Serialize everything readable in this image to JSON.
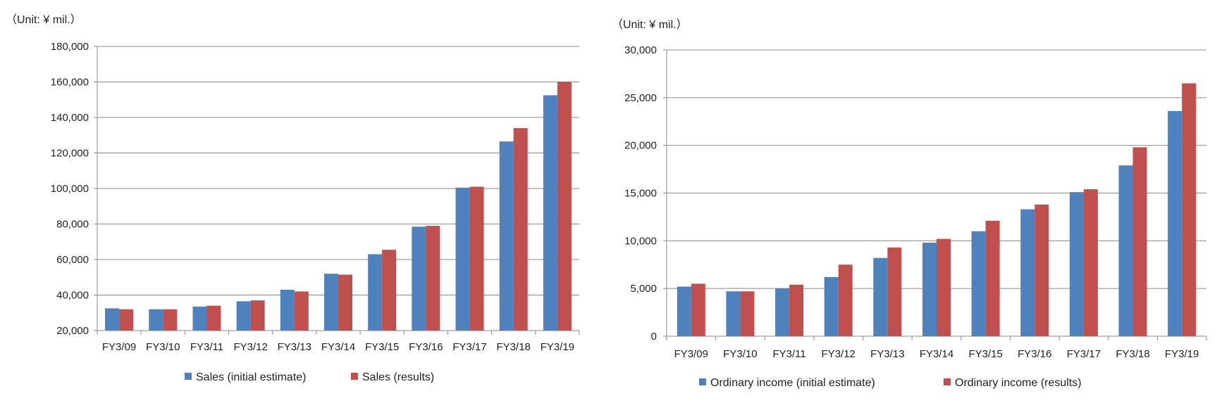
{
  "colors": {
    "initial": "#4F81BD",
    "results": "#C0504D"
  },
  "chart_data": [
    {
      "type": "bar",
      "unit_label": "（Unit: ¥ mil.）",
      "categories": [
        "FY3/09",
        "FY3/10",
        "FY3/11",
        "FY3/12",
        "FY3/13",
        "FY3/14",
        "FY3/15",
        "FY3/16",
        "FY3/17",
        "FY3/18",
        "FY3/19"
      ],
      "series": [
        {
          "name": "Sales (initial estimate)",
          "values": [
            32500,
            32000,
            33500,
            36500,
            43000,
            52000,
            63000,
            78500,
            100500,
            126500,
            152500
          ]
        },
        {
          "name": "Sales (results)",
          "values": [
            32000,
            32000,
            34000,
            37000,
            42000,
            51500,
            65500,
            79000,
            101000,
            134000,
            160000
          ]
        }
      ],
      "ylim": [
        20000,
        180000
      ],
      "yticks": [
        "20,000",
        "40,000",
        "60,000",
        "80,000",
        "100,000",
        "120,000",
        "140,000",
        "160,000",
        "180,000"
      ],
      "ytick_values": [
        20000,
        40000,
        60000,
        80000,
        100000,
        120000,
        140000,
        160000,
        180000
      ],
      "grid": true,
      "legend": "bottom"
    },
    {
      "type": "bar",
      "unit_label": "（Unit: ¥ mil.）",
      "categories": [
        "FY3/09",
        "FY3/10",
        "FY3/11",
        "FY3/12",
        "FY3/13",
        "FY3/14",
        "FY3/15",
        "FY3/16",
        "FY3/17",
        "FY3/18",
        "FY3/19"
      ],
      "series": [
        {
          "name": "Ordinary income (initial estimate)",
          "values": [
            5200,
            4700,
            5000,
            6200,
            8200,
            9800,
            11000,
            13300,
            15100,
            17900,
            23600
          ]
        },
        {
          "name": "Ordinary income (results)",
          "values": [
            5500,
            4700,
            5400,
            7500,
            9300,
            10200,
            12100,
            13800,
            15400,
            19800,
            26500
          ]
        }
      ],
      "ylim": [
        0,
        30000
      ],
      "yticks": [
        "0",
        "5,000",
        "10,000",
        "15,000",
        "20,000",
        "25,000",
        "30,000"
      ],
      "ytick_values": [
        0,
        5000,
        10000,
        15000,
        20000,
        25000,
        30000
      ],
      "grid": true,
      "legend": "bottom"
    }
  ]
}
